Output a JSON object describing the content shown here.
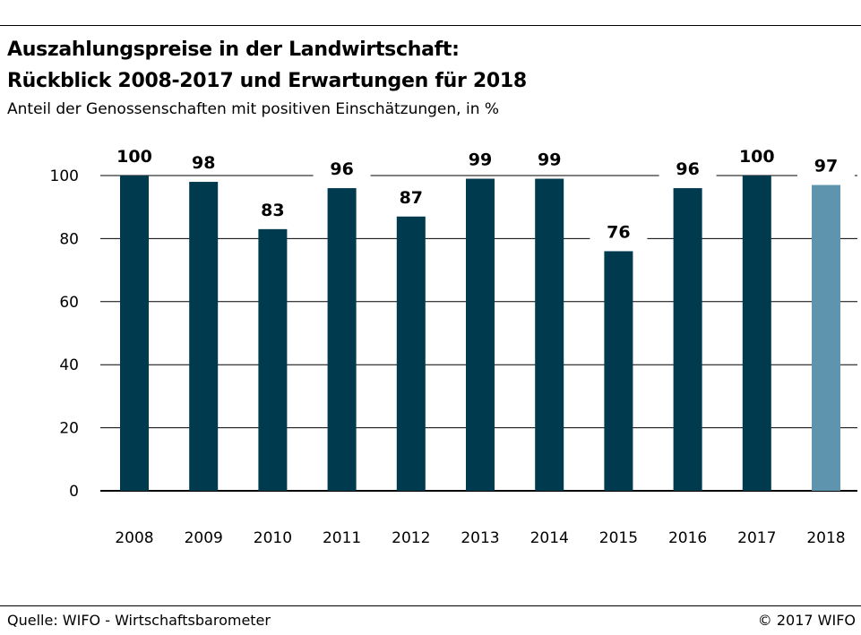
{
  "title_line1": "Auszahlungspreise in der Landwirtschaft:",
  "title_line2": "Rückblick 2008-2017 und Erwartungen für 2018",
  "subtitle": "Anteil der Genossenschaften mit positiven Einschätzungen, in %",
  "source": "Quelle: WIFO - Wirtschaftsbarometer",
  "copyright": "© 2017 WIFO",
  "chart_data": {
    "type": "bar",
    "title": "Auszahlungspreise in der Landwirtschaft: Rückblick 2008-2017 und Erwartungen für 2018",
    "subtitle": "Anteil der Genossenschaften mit positiven Einschätzungen, in %",
    "xlabel": "",
    "ylabel": "",
    "categories": [
      "2008",
      "2009",
      "2010",
      "2011",
      "2012",
      "2013",
      "2014",
      "2015",
      "2016",
      "2017",
      "2018"
    ],
    "values": [
      100,
      98,
      83,
      96,
      87,
      99,
      99,
      76,
      96,
      100,
      97
    ],
    "data_labels": [
      "100",
      "98",
      "83",
      "96",
      "87",
      "99",
      "99",
      "76",
      "96",
      "100",
      "97"
    ],
    "yticks": [
      0,
      20,
      40,
      60,
      80,
      100
    ],
    "ylim": [
      0,
      100
    ],
    "grid": "horizontal",
    "colors": {
      "actual": "#003a4f",
      "expected": "#5e94ad",
      "grid": "#000000"
    },
    "bar_color_keys": [
      "actual",
      "actual",
      "actual",
      "actual",
      "actual",
      "actual",
      "actual",
      "actual",
      "actual",
      "actual",
      "expected"
    ]
  }
}
